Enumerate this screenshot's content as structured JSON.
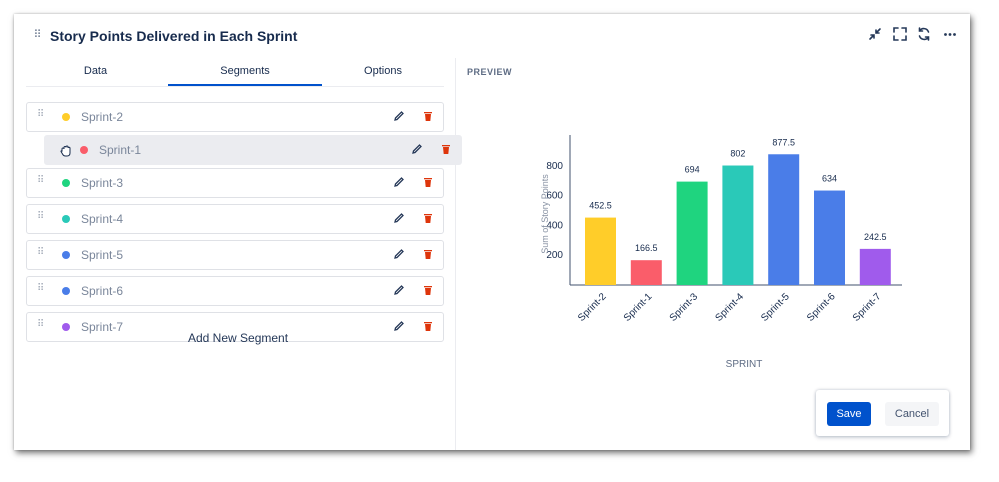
{
  "title": "Story Points Delivered in Each Sprint",
  "tabs": [
    {
      "label": "Data"
    },
    {
      "label": "Segments"
    },
    {
      "label": "Options"
    }
  ],
  "active_tab": "Segments",
  "segments": [
    {
      "label": "Sprint-2",
      "color": "#ffcd29"
    },
    {
      "label": "Sprint-1",
      "color": "#fa5d6a"
    },
    {
      "label": "Sprint-3",
      "color": "#1fd47f"
    },
    {
      "label": "Sprint-4",
      "color": "#2ac9b8"
    },
    {
      "label": "Sprint-5",
      "color": "#4a7de8"
    },
    {
      "label": "Sprint-6",
      "color": "#4a7de8"
    },
    {
      "label": "Sprint-7",
      "color": "#a05bec"
    }
  ],
  "add_segment_label": "Add New Segment",
  "preview_label": "PREVIEW",
  "buttons": {
    "save": "Save",
    "cancel": "Cancel"
  },
  "colors": {
    "accent": "#0052cc",
    "delete": "#de350b"
  },
  "chart_data": {
    "type": "bar",
    "categories": [
      "Sprint-2",
      "Sprint-1",
      "Sprint-3",
      "Sprint-4",
      "Sprint-5",
      "Sprint-6",
      "Sprint-7"
    ],
    "values": [
      452.5,
      166.5,
      694,
      802,
      877.5,
      634,
      242.5
    ],
    "value_labels": [
      "452.5",
      "166.5",
      "694",
      "802",
      "877.5",
      "634",
      "242.5"
    ],
    "colors": [
      "#ffcd29",
      "#fa5d6a",
      "#1fd47f",
      "#2ac9b8",
      "#4a7de8",
      "#4a7de8",
      "#a05bec"
    ],
    "xlabel": "SPRINT",
    "ylabel": "Sum of Story Points",
    "yticks": [
      200,
      400,
      600,
      800
    ],
    "ylim": [
      0,
      980
    ],
    "grid": false,
    "legend": "none"
  }
}
